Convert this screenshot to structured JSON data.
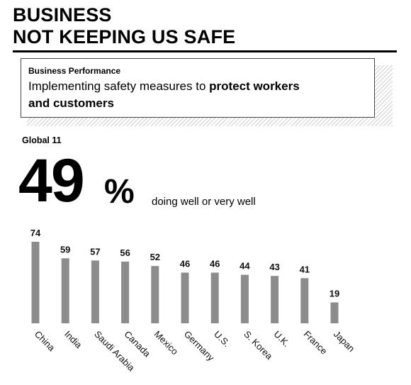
{
  "header": {
    "title_line1": "BUSINESS",
    "title_line2": "NOT KEEPING US SAFE"
  },
  "callout": {
    "eyebrow": "Business Performance",
    "description_plain": "Implementing safety measures to ",
    "description_bold_1": "protect workers",
    "description_bold_2": "and customers"
  },
  "summary": {
    "label": "Global 11",
    "value": "49",
    "unit": "%",
    "caption": "doing well or very well"
  },
  "colors": {
    "bar": "#8c8c8c",
    "text": "#000000"
  },
  "chart_data": {
    "type": "bar",
    "categories": [
      "China",
      "India",
      "Saudi Arabia",
      "Canada",
      "Mexico",
      "Germany",
      "U.S.",
      "S. Korea",
      "U.K.",
      "France",
      "Japan"
    ],
    "values": [
      74,
      59,
      57,
      56,
      52,
      46,
      46,
      44,
      43,
      41,
      19
    ],
    "title": "",
    "xlabel": "",
    "ylabel": "",
    "ylim": [
      0,
      74
    ],
    "grid": false,
    "legend": "none"
  }
}
